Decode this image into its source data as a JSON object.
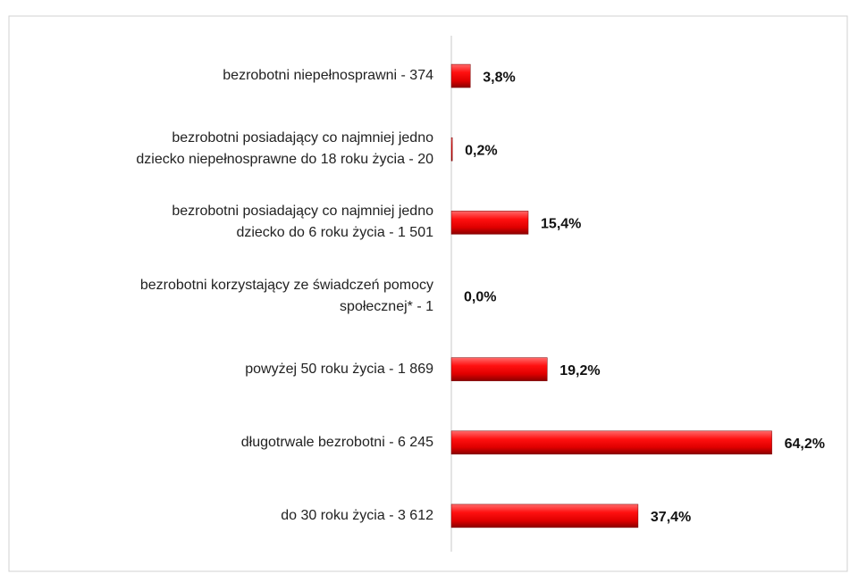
{
  "chart_data": {
    "type": "bar",
    "orientation": "horizontal",
    "categories": [
      "bezrobotni niepełnosprawni - 374",
      "bezrobotni posiadający co najmniej jedno\ndziecko niepełnosprawne do 18 roku życia - 20",
      "bezrobotni posiadający co najmniej jedno\ndziecko do 6 roku życia - 1 501",
      "bezrobotni korzystający ze świadczeń pomocy\nspołecznej* - 1",
      "powyżej 50 roku życia - 1 869",
      "długotrwale bezrobotni - 6 245",
      "do 30 roku życia - 3 612"
    ],
    "values": [
      3.8,
      0.2,
      15.4,
      0.0,
      19.2,
      64.2,
      37.4
    ],
    "value_labels": [
      "3,8%",
      "0,2%",
      "15,4%",
      "0,0%",
      "19,2%",
      "64,2%",
      "37,4%"
    ],
    "color": "#e00000",
    "xlim": [
      0,
      70
    ]
  }
}
